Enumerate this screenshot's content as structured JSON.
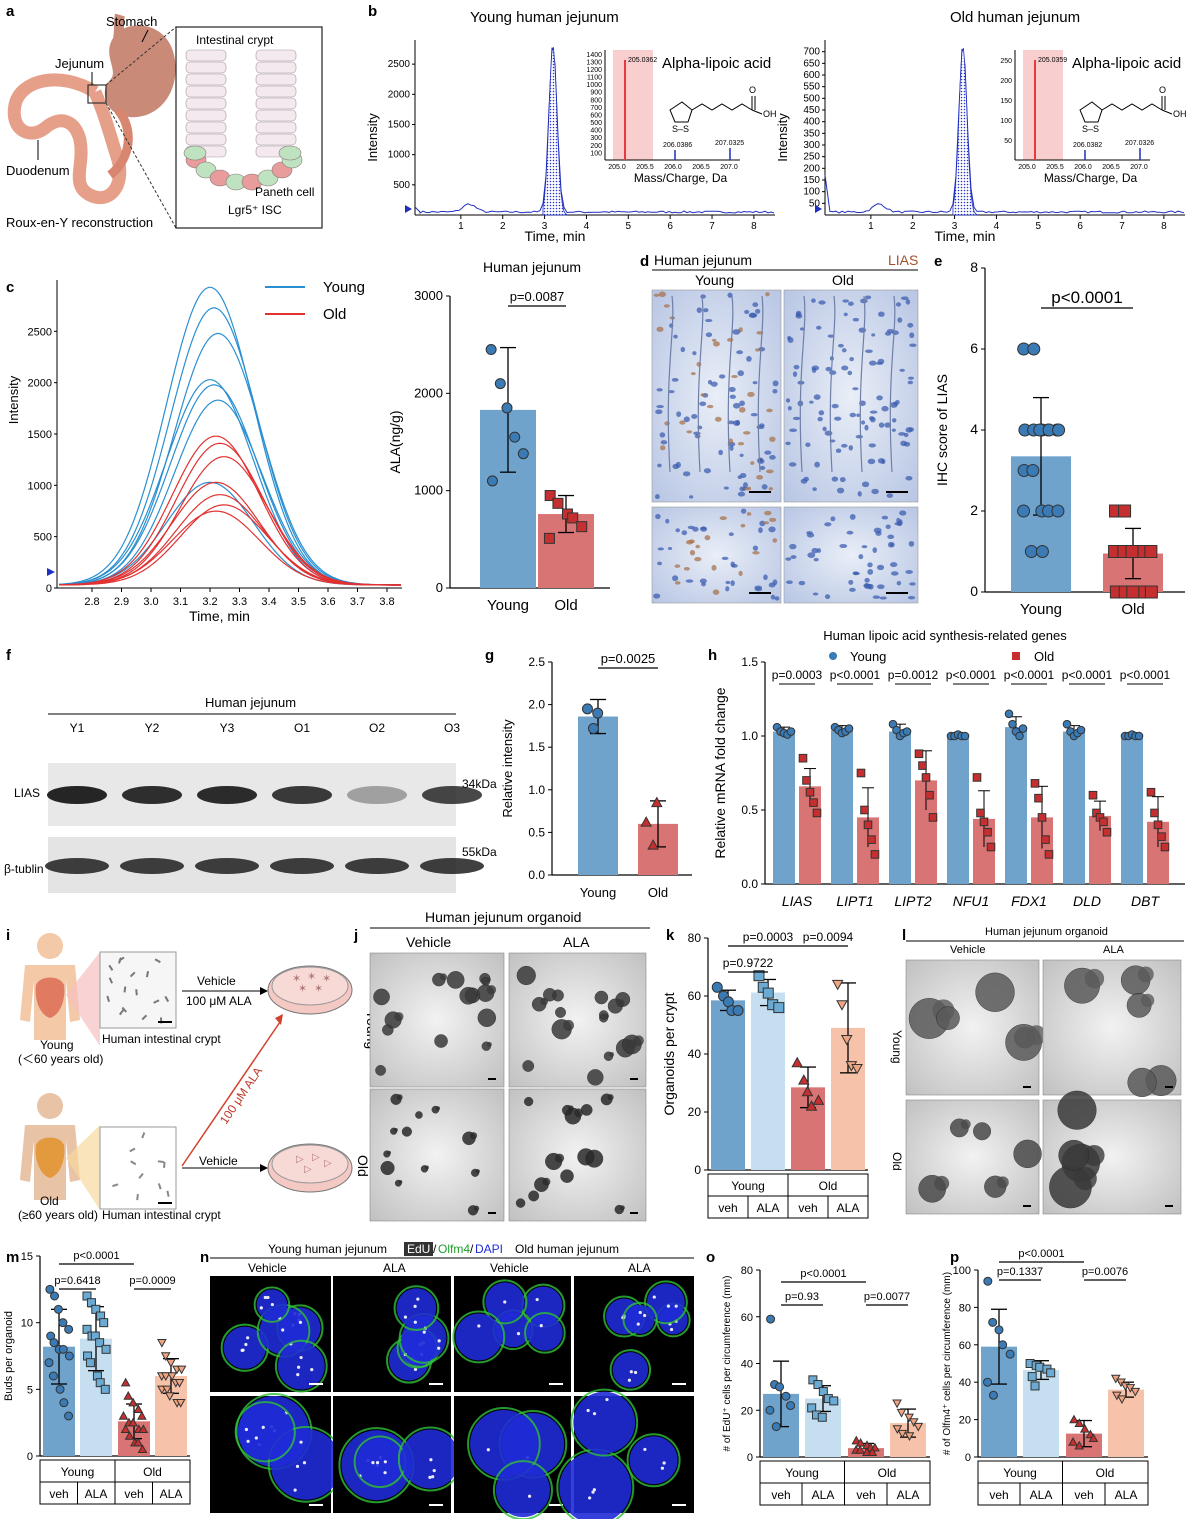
{
  "colors": {
    "young": "#6fa3cc",
    "old": "#d97474",
    "young_dot": "#3a7ab5",
    "old_dot": "#c62f2f",
    "young_light": "#c5dff0",
    "old_light": "#f6c3aa",
    "chrom_blue": "#1f2fbf",
    "chrom_red": "#e43c3c",
    "ihc_blue": "#3d5fb0",
    "dapi": "#1f2bd6",
    "olfm4": "#2fbf3a"
  },
  "panels": {
    "a": {
      "label": "a",
      "stomach": "Stomach",
      "jejunum": "Jejunum",
      "duodenum": "Duodenum",
      "roux": "Roux-en-Y reconstruction",
      "crypt": "Intestinal crypt",
      "paneth": "Paneth cell",
      "isc": "Lgr5⁺ ISC"
    },
    "b": {
      "label": "b",
      "young_title": "Young human jejunum",
      "old_title": "Old human jejunum",
      "compound": "Alpha-lipoic acid",
      "ylabel": "Intensity",
      "xlabel": "Time, min",
      "inset_xlabel": "Mass/Charge, Da",
      "young_yticks": [
        "500",
        "1000",
        "1500",
        "2000",
        "2500"
      ],
      "old_yticks": [
        "50",
        "100",
        "150",
        "200",
        "250",
        "300",
        "350",
        "400",
        "450",
        "500",
        "550",
        "600",
        "650",
        "700"
      ],
      "young_xticks": [
        "1",
        "2",
        "3",
        "4",
        "5",
        "6",
        "7",
        "8"
      ],
      "old_xticks": [
        "1",
        "2",
        "3",
        "4",
        "5",
        "6",
        "7",
        "8"
      ],
      "young_inset_yticks": [
        "100",
        "200",
        "300",
        "400",
        "500",
        "600",
        "700",
        "800",
        "900",
        "1000",
        "1100",
        "1200",
        "1300",
        "1400"
      ],
      "old_inset_yticks": [
        "50",
        "100",
        "150",
        "200",
        "250"
      ],
      "inset_xticks": [
        "205.0",
        "205.5",
        "206.0",
        "206.5",
        "207.0"
      ],
      "young_peaks": [
        "205.0362",
        "206.0386",
        "207.0325"
      ],
      "old_peaks": [
        "205.0359",
        "206.0382",
        "207.0326"
      ],
      "molecule_o": "O",
      "molecule_oh": "OH",
      "molecule_s": "S–S"
    },
    "c_chrom": {
      "label": "c",
      "legend_young": "Young",
      "legend_old": "Old",
      "ylabel": "Intensity",
      "xlabel": "Time, min",
      "yticks": [
        "0",
        "500",
        "1000",
        "1500",
        "2000",
        "2500"
      ],
      "xticks": [
        "2.8",
        "2.9",
        "3.0",
        "3.1",
        "3.2",
        "3.3",
        "3.4",
        "3.5",
        "3.6",
        "3.7",
        "3.8"
      ],
      "young_peak_heights": [
        2900,
        2700,
        2450,
        2000,
        1950,
        1800,
        1000
      ],
      "old_peak_heights": [
        1450,
        1380,
        1250,
        1000,
        880,
        780,
        720
      ]
    },
    "c_bar": {
      "title": "Human jejunum",
      "ylabel": "ALA(ng/g)",
      "yticks": [
        "0",
        "1000",
        "2000",
        "3000"
      ],
      "categories": [
        "Young",
        "Old"
      ],
      "pvalue": "p=0.0087"
    },
    "d": {
      "label": "d",
      "title": "Human jejunum",
      "stain": "LIAS",
      "young": "Young",
      "old": "Old"
    },
    "e": {
      "label": "e",
      "ylabel": "IHC score of LIAS",
      "yticks": [
        "0",
        "2",
        "4",
        "6",
        "8"
      ],
      "categories": [
        "Young",
        "Old"
      ],
      "pvalue": "p<0.0001"
    },
    "f": {
      "label": "f",
      "title": "Human jejunum",
      "lanes": [
        "Y1",
        "Y2",
        "Y3",
        "O1",
        "O2",
        "O3"
      ],
      "row1": "LIAS",
      "row2": "β-tublin",
      "kda1": "34kDa",
      "kda2": "55kDa"
    },
    "g": {
      "label": "g",
      "ylabel": "Relative intensity",
      "yticks": [
        "0.0",
        "0.5",
        "1.0",
        "1.5",
        "2.0",
        "2.5"
      ],
      "categories": [
        "Young",
        "Old"
      ],
      "pvalue": "p=0.0025"
    },
    "h": {
      "label": "h",
      "title": "Human lipoic acid synthesis-related genes",
      "legend_young": "Young",
      "legend_old": "Old",
      "ylabel": "Relative mRNA fold change",
      "yticks": [
        "0.0",
        "0.5",
        "1.0",
        "1.5"
      ],
      "genes": [
        "LIAS",
        "LIPT1",
        "LIPT2",
        "NFU1",
        "FDX1",
        "DLD",
        "DBT"
      ],
      "pvalues": [
        "p=0.0003",
        "p<0.0001",
        "p=0.0012",
        "p<0.0001",
        "p<0.0001",
        "p<0.0001",
        "p<0.0001"
      ]
    },
    "i": {
      "label": "i",
      "young_label": "Young",
      "young_age": "(＜60 years old)",
      "old_label": "Old",
      "old_age": "(≥60 years old)",
      "crypt1": "Human intestinal crypt",
      "crypt2": "Human intestinal crypt",
      "vehicle1": "Vehicle",
      "ala1": "100 μM ALA",
      "diag": "100 μM ALA",
      "vehicle2": "Vehicle"
    },
    "j": {
      "label": "j",
      "title": "Human jejunum organoid",
      "vehicle": "Vehicle",
      "ala": "ALA",
      "young": "Young",
      "old": "Old"
    },
    "k": {
      "label": "k",
      "ylabel": "Organoids per crypt",
      "yticks": [
        "0",
        "20",
        "40",
        "60",
        "80"
      ],
      "p1": "p=0.0003",
      "p2": "p=0.0094",
      "p3": "p=0.9722",
      "group1": "Young",
      "group2": "Old",
      "t1": "veh",
      "t2": "ALA",
      "t3": "veh",
      "t4": "ALA"
    },
    "l": {
      "label": "l",
      "title": "Human jejunum organoid",
      "vehicle": "Vehicle",
      "ala": "ALA",
      "young": "Young",
      "old": "Old"
    },
    "m": {
      "label": "m",
      "ylabel": "Buds per organoid",
      "yticks": [
        "0",
        "5",
        "10",
        "15"
      ],
      "p1": "p<0.0001",
      "p2": "p=0.6418",
      "p3": "p=0.0009",
      "group1": "Young",
      "group2": "Old",
      "t1": "veh",
      "t2": "ALA",
      "t3": "veh",
      "t4": "ALA"
    },
    "n": {
      "label": "n",
      "young_title": "Young human jejunum",
      "old_title": "Old human jejunum",
      "edu": "EdU",
      "olfm4": "Olfm4",
      "dapi": "DAPI",
      "slash1": "/",
      "slash2": "/",
      "cols": [
        "Vehicle",
        "ALA",
        "Vehicle",
        "ALA"
      ]
    },
    "o": {
      "label": "o",
      "ylabel": "# of EdU⁺ cells per circumference (mm)",
      "yticks": [
        "0",
        "20",
        "40",
        "60",
        "80"
      ],
      "p1": "p<0.0001",
      "p2": "p=0.93",
      "p3": "p=0.0077",
      "group1": "Young",
      "group2": "Old",
      "t1": "veh",
      "t2": "ALA",
      "t3": "veh",
      "t4": "ALA"
    },
    "p": {
      "label": "p",
      "ylabel": "# of Olfm4⁺ cells per circumference (mm)",
      "yticks": [
        "0",
        "20",
        "40",
        "60",
        "80",
        "100"
      ],
      "p1": "p<0.0001",
      "p2": "p=0.1337",
      "p3": "p=0.0076",
      "group1": "Young",
      "group2": "Old",
      "t1": "veh",
      "t2": "ALA",
      "t3": "veh",
      "t4": "ALA"
    }
  },
  "chart_data": [
    {
      "panel": "c",
      "type": "bar",
      "title": "Human jejunum",
      "ylabel": "ALA(ng/g)",
      "categories": [
        "Young",
        "Old"
      ],
      "values": [
        1830,
        760
      ],
      "errors": [
        640,
        190
      ],
      "ylim": [
        0,
        3000
      ],
      "points": [
        [
          2450,
          2100,
          1850,
          1550,
          1380,
          1100
        ],
        [
          950,
          870,
          760,
          720,
          630,
          510
        ]
      ]
    },
    {
      "panel": "e",
      "type": "bar",
      "ylabel": "IHC score of LIAS",
      "categories": [
        "Young",
        "Old"
      ],
      "values": [
        3.35,
        0.95
      ],
      "errors": [
        1.45,
        0.62
      ],
      "ylim": [
        0,
        8
      ],
      "points": [
        [
          6,
          6,
          4,
          4,
          4,
          4,
          4,
          4,
          4,
          4,
          3,
          3,
          2,
          2,
          2,
          2,
          1,
          1
        ],
        [
          2,
          2,
          1,
          1,
          1,
          1,
          1,
          1,
          1,
          1,
          1,
          1,
          1,
          0,
          0,
          0,
          0,
          0
        ]
      ]
    },
    {
      "panel": "g",
      "type": "bar",
      "ylabel": "Relative intensity",
      "categories": [
        "Young",
        "Old"
      ],
      "values": [
        1.86,
        0.6
      ],
      "errors": [
        0.2,
        0.27
      ],
      "ylim": [
        0,
        2.5
      ],
      "points": [
        [
          1.95,
          1.72,
          1.9
        ],
        [
          0.62,
          0.35,
          0.85
        ]
      ]
    },
    {
      "panel": "h",
      "type": "bar",
      "ylabel": "Relative mRNA fold change",
      "categories": [
        "LIAS",
        "LIPT1",
        "LIPT2",
        "NFU1",
        "FDX1",
        "DLD",
        "DBT"
      ],
      "ylim": [
        0,
        1.5
      ],
      "series": [
        {
          "name": "Young",
          "values": [
            1.03,
            1.04,
            1.03,
            1.0,
            1.06,
            1.03,
            1.0
          ],
          "errors": [
            0.03,
            0.03,
            0.05,
            0.01,
            0.07,
            0.04,
            0.01
          ]
        },
        {
          "name": "Old",
          "values": [
            0.66,
            0.45,
            0.7,
            0.44,
            0.45,
            0.46,
            0.42
          ],
          "errors": [
            0.12,
            0.2,
            0.2,
            0.19,
            0.21,
            0.1,
            0.17
          ]
        }
      ],
      "points": {
        "Young": [
          [
            1.06,
            1.03,
            1.02,
            1.01,
            1.03
          ],
          [
            1.06,
            1.04,
            1.02,
            1.03,
            1.05
          ],
          [
            1.08,
            1.04,
            1.0,
            1.02,
            1.03
          ],
          [
            1.0,
            1.0,
            1.01,
            1.0,
            1.0
          ],
          [
            1.15,
            1.08,
            1.03,
            1.0,
            1.05
          ],
          [
            1.08,
            1.03,
            1.0,
            1.02,
            1.04
          ],
          [
            1.0,
            1.0,
            1.01,
            1.0,
            1.0
          ]
        ],
        "Old": [
          [
            0.85,
            0.7,
            0.62,
            0.55,
            0.48
          ],
          [
            0.75,
            0.5,
            0.4,
            0.3,
            0.2
          ],
          [
            0.88,
            0.8,
            0.72,
            0.6,
            0.45
          ],
          [
            0.72,
            0.48,
            0.42,
            0.35,
            0.25
          ],
          [
            0.68,
            0.58,
            0.45,
            0.3,
            0.2
          ],
          [
            0.6,
            0.48,
            0.45,
            0.42,
            0.35
          ],
          [
            0.62,
            0.48,
            0.4,
            0.32,
            0.25
          ]
        ]
      }
    },
    {
      "panel": "k",
      "type": "bar",
      "ylabel": "Organoids per crypt",
      "categories": [
        "Young veh",
        "Young ALA",
        "Old veh",
        "Old ALA"
      ],
      "values": [
        58.5,
        61.2,
        28.5,
        49.0
      ],
      "errors": [
        3.5,
        4.5,
        7.0,
        15.5
      ],
      "ylim": [
        0,
        80
      ],
      "points": [
        [
          63,
          60,
          58,
          55,
          55
        ],
        [
          67,
          63,
          61,
          57,
          56
        ],
        [
          37,
          31,
          27,
          22,
          24
        ],
        [
          64,
          57,
          45,
          36,
          35
        ]
      ]
    },
    {
      "panel": "m",
      "type": "bar",
      "ylabel": "Buds per organoid",
      "categories": [
        "Young veh",
        "Young ALA",
        "Old veh",
        "Old ALA"
      ],
      "values": [
        8.2,
        8.8,
        2.6,
        6.0
      ],
      "errors": [
        2.8,
        2.4,
        1.3,
        1.3
      ],
      "ylim": [
        0,
        15
      ],
      "points": [
        [
          12.5,
          12,
          11,
          10,
          9.5,
          9,
          8.5,
          8,
          8,
          7.5,
          7,
          6,
          5,
          4,
          3
        ],
        [
          12,
          11.5,
          11,
          10.5,
          10,
          9.5,
          9,
          9,
          8.5,
          8,
          7.5,
          7,
          6,
          5.5,
          5
        ],
        [
          5.5,
          4.5,
          4,
          3.5,
          3,
          3,
          2.5,
          2.5,
          2,
          2,
          2,
          1.5,
          1,
          1,
          0.5
        ],
        [
          8.5,
          7.5,
          7,
          6.5,
          6.5,
          6,
          6,
          6,
          5.5,
          5.5,
          5,
          5,
          4.5,
          4,
          4
        ]
      ]
    },
    {
      "panel": "o",
      "type": "bar",
      "ylabel": "# of EdU⁺ cells per circumference (mm)",
      "categories": [
        "Young veh",
        "Young ALA",
        "Old veh",
        "Old ALA"
      ],
      "values": [
        27,
        25,
        3.8,
        14.5
      ],
      "errors": [
        14,
        5.5,
        2,
        6
      ],
      "ylim": [
        0,
        80
      ],
      "points": [
        [
          59,
          31,
          30,
          26,
          22,
          20,
          13
        ],
        [
          33,
          31,
          28,
          25,
          24,
          21,
          18,
          17
        ],
        [
          7,
          6,
          5,
          4,
          4,
          3,
          3,
          2,
          2
        ],
        [
          23,
          19,
          17,
          15,
          13,
          12,
          10,
          9
        ]
      ]
    },
    {
      "panel": "p",
      "type": "bar",
      "ylabel": "# of Olfm4⁺ cells per circumference (mm)",
      "categories": [
        "Young veh",
        "Young ALA",
        "Old veh",
        "Old ALA"
      ],
      "values": [
        59,
        46.5,
        12.5,
        36
      ],
      "errors": [
        20,
        5,
        7,
        4
      ],
      "ylim": [
        0,
        100
      ],
      "points": [
        [
          94,
          72,
          68,
          60,
          55,
          40,
          33
        ],
        [
          50,
          49,
          48,
          47,
          45,
          43,
          38
        ],
        [
          20,
          18,
          15,
          12,
          10,
          8,
          6
        ],
        [
          42,
          40,
          38,
          37,
          35,
          33,
          31
        ]
      ]
    }
  ]
}
